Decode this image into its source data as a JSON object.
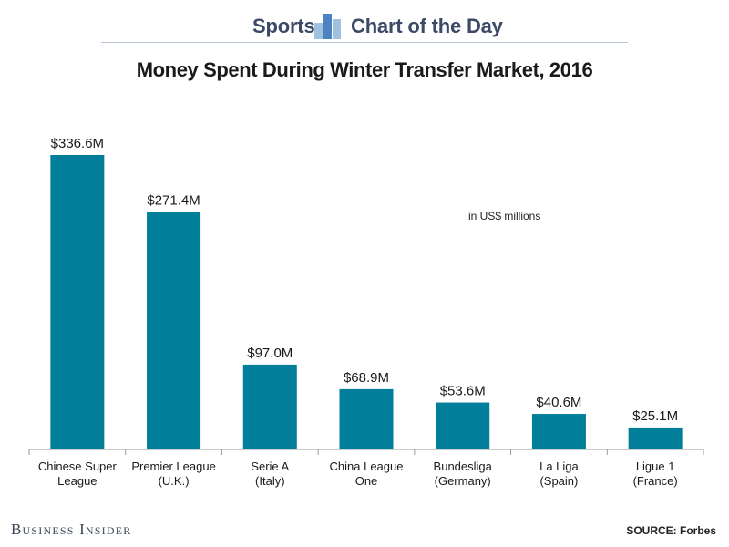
{
  "header": {
    "left_label": "Sports",
    "right_label": "Chart of the Day"
  },
  "colors": {
    "bar": "#007e9a",
    "header_text": "#3b4a66",
    "axis": "#9a9a9a"
  },
  "icons": {
    "brand": "bar-chart-icon"
  },
  "footer": {
    "publisher": "Business Insider",
    "source": "SOURCE: Forbes"
  },
  "chart_data": {
    "type": "bar",
    "title": "Money Spent During Winter Transfer Market, 2016",
    "unit_note": "in US$ millions",
    "categories": [
      [
        "Chinese Super",
        "League"
      ],
      [
        "Premier League",
        "(U.K.)"
      ],
      [
        "Serie A",
        "(Italy)"
      ],
      [
        "China League",
        "One"
      ],
      [
        "Bundesliga",
        "(Germany)"
      ],
      [
        "La Liga",
        "(Spain)"
      ],
      [
        "Ligue 1",
        "(France)"
      ]
    ],
    "values": [
      336.6,
      271.4,
      97.0,
      68.9,
      53.6,
      40.6,
      25.1
    ],
    "data_labels": [
      "$336.6M",
      "$271.4M",
      "$97.0M",
      "$68.9M",
      "$53.6M",
      "$40.6M",
      "$25.1M"
    ],
    "ylim": [
      0,
      336.6
    ],
    "grid": false,
    "legend": "none"
  }
}
